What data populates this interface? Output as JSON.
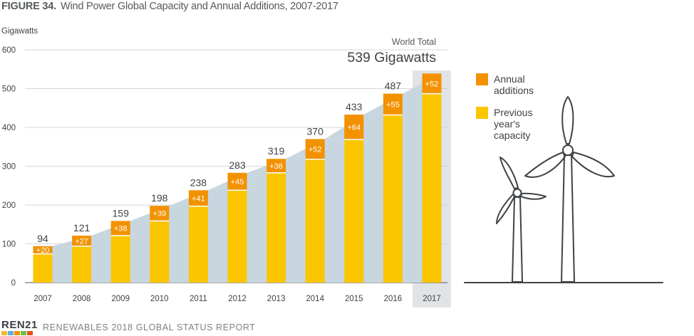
{
  "figure": {
    "number": "FIGURE 34.",
    "title": "Wind Power Global Capacity and Annual Additions, 2007-2017"
  },
  "footer": {
    "logo_text_a": "REN",
    "logo_text_b": "21",
    "report_name": "RENEWABLES 2018 GLOBAL STATUS REPORT"
  },
  "colors": {
    "previous": "#fbc500",
    "additions": "#f39200",
    "area": "#c8d6df",
    "highlight": "#e1e4e7",
    "grid": "#c8c8c8",
    "text": "#3f4245",
    "turbine": "#3f4245"
  },
  "chart_data": {
    "type": "bar",
    "stacked": true,
    "ylabel": "Gigawatts",
    "ylim": [
      0,
      600
    ],
    "yticks": [
      0,
      100,
      200,
      300,
      400,
      500,
      600
    ],
    "grid": true,
    "legend_position": "right",
    "categories": [
      "2007",
      "2008",
      "2009",
      "2010",
      "2011",
      "2012",
      "2013",
      "2014",
      "2015",
      "2016",
      "2017"
    ],
    "series": [
      {
        "name": "Previous year's capacity",
        "values": [
          74,
          94,
          121,
          159,
          197,
          238,
          283,
          318,
          369,
          432,
          487
        ]
      },
      {
        "name": "Annual additions",
        "values": [
          20,
          27,
          38,
          39,
          41,
          45,
          36,
          52,
          64,
          55,
          52
        ]
      }
    ],
    "addition_labels": [
      "+20",
      "+27",
      "+38",
      "+39",
      "+41",
      "+45",
      "+36",
      "+52",
      "+64",
      "+55",
      "+52"
    ],
    "total_labels": [
      "94",
      "121",
      "159",
      "198",
      "238",
      "283",
      "319",
      "370",
      "433",
      "487",
      ""
    ],
    "highlight_category": "2017",
    "world_total": {
      "label": "World Total",
      "value_text": "539 Gigawatts"
    },
    "legend": [
      {
        "label_lines": [
          "Annual",
          "additions"
        ],
        "color": "#f39200"
      },
      {
        "label_lines": [
          "Previous",
          "year's",
          "capacity"
        ],
        "color": "#fbc500"
      }
    ]
  }
}
